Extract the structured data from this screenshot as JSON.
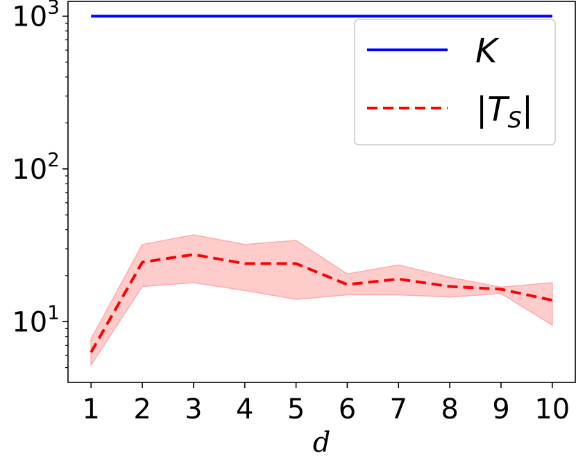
{
  "chart_data": {
    "type": "line",
    "title": "",
    "xlabel": "d",
    "ylabel": "",
    "yscale": "log",
    "xlim": [
      0.55,
      10.45
    ],
    "ylim": [
      4,
      1250
    ],
    "x_ticks": [
      1,
      2,
      3,
      4,
      5,
      6,
      7,
      8,
      9,
      10
    ],
    "x_tick_labels": [
      "1",
      "2",
      "3",
      "4",
      "5",
      "6",
      "7",
      "8",
      "9",
      "10"
    ],
    "y_ticks": [
      10,
      100,
      1000
    ],
    "y_tick_base": "10",
    "y_tick_exponents": [
      "1",
      "2",
      "3"
    ],
    "grid": false,
    "legend_position": "top-right",
    "series": [
      {
        "name": "K",
        "color": "#0000ff",
        "style": "solid",
        "x": [
          1,
          2,
          3,
          4,
          5,
          6,
          7,
          8,
          9,
          10
        ],
        "values": [
          1000,
          1000,
          1000,
          1000,
          1000,
          1000,
          1000,
          1000,
          1000,
          1000
        ]
      },
      {
        "name": "|T_S|",
        "color": "#ff0000",
        "style": "dashed",
        "x": [
          1,
          2,
          3,
          4,
          5,
          6,
          7,
          8,
          9,
          10
        ],
        "values": [
          6.3,
          24.5,
          27.5,
          24,
          24,
          17.5,
          19,
          17,
          16.3,
          13.8
        ],
        "band_upper": [
          7.7,
          32,
          37,
          32,
          34,
          20.5,
          23.5,
          19.5,
          16.8,
          18
        ],
        "band_lower": [
          5.2,
          17,
          18,
          16,
          14,
          15,
          15,
          14.5,
          15.3,
          9.5
        ],
        "band_color": "#ffcccc",
        "band_edge_color": "#ffaaaa"
      }
    ],
    "legend": {
      "entries": [
        {
          "label_main": "K",
          "label_sub": ""
        },
        {
          "label_main": "|T",
          "label_sub": "S",
          "label_end": "|"
        }
      ]
    }
  }
}
